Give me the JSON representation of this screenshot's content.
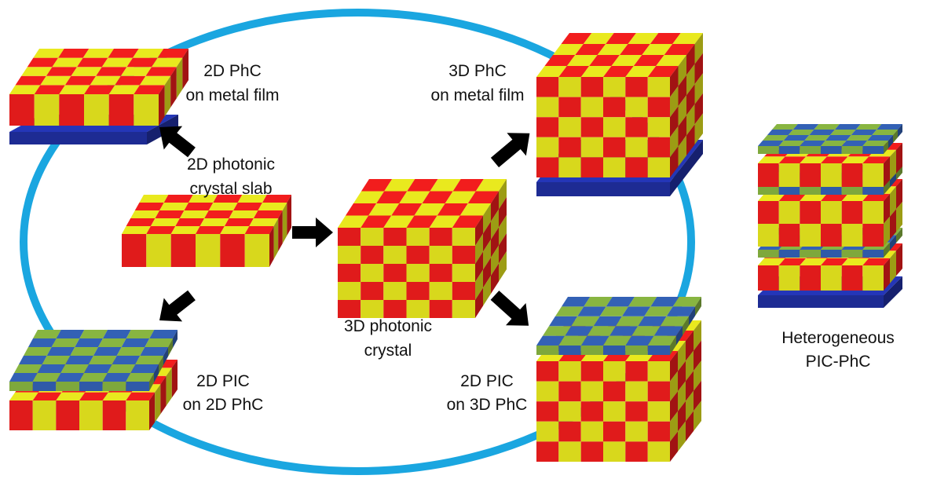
{
  "colors": {
    "ring": "#1aa6e0",
    "red": "#e01b1b",
    "yellow": "#d8d81c",
    "green": "#7ea83c",
    "blue_tile": "#2f5aa8",
    "metal_film": "#2436b8",
    "arrow": "#000000"
  },
  "labels": {
    "pc2d_metal": [
      "2D PhC",
      "on metal film"
    ],
    "pc3d_metal": [
      "3D PhC",
      "on metal film"
    ],
    "slab": [
      "2D photonic",
      "crystal slab"
    ],
    "crystal3d": [
      "3D photonic",
      "crystal"
    ],
    "pic2d": [
      "2D PIC",
      "on 2D PhC"
    ],
    "pic3d": [
      "2D PIC",
      "on 3D PhC"
    ],
    "hetero": [
      "Heterogeneous",
      "PIC-PhC"
    ]
  },
  "icons": {
    "arrow": "thick-black-arrow",
    "ring": "cycle-ellipse"
  }
}
